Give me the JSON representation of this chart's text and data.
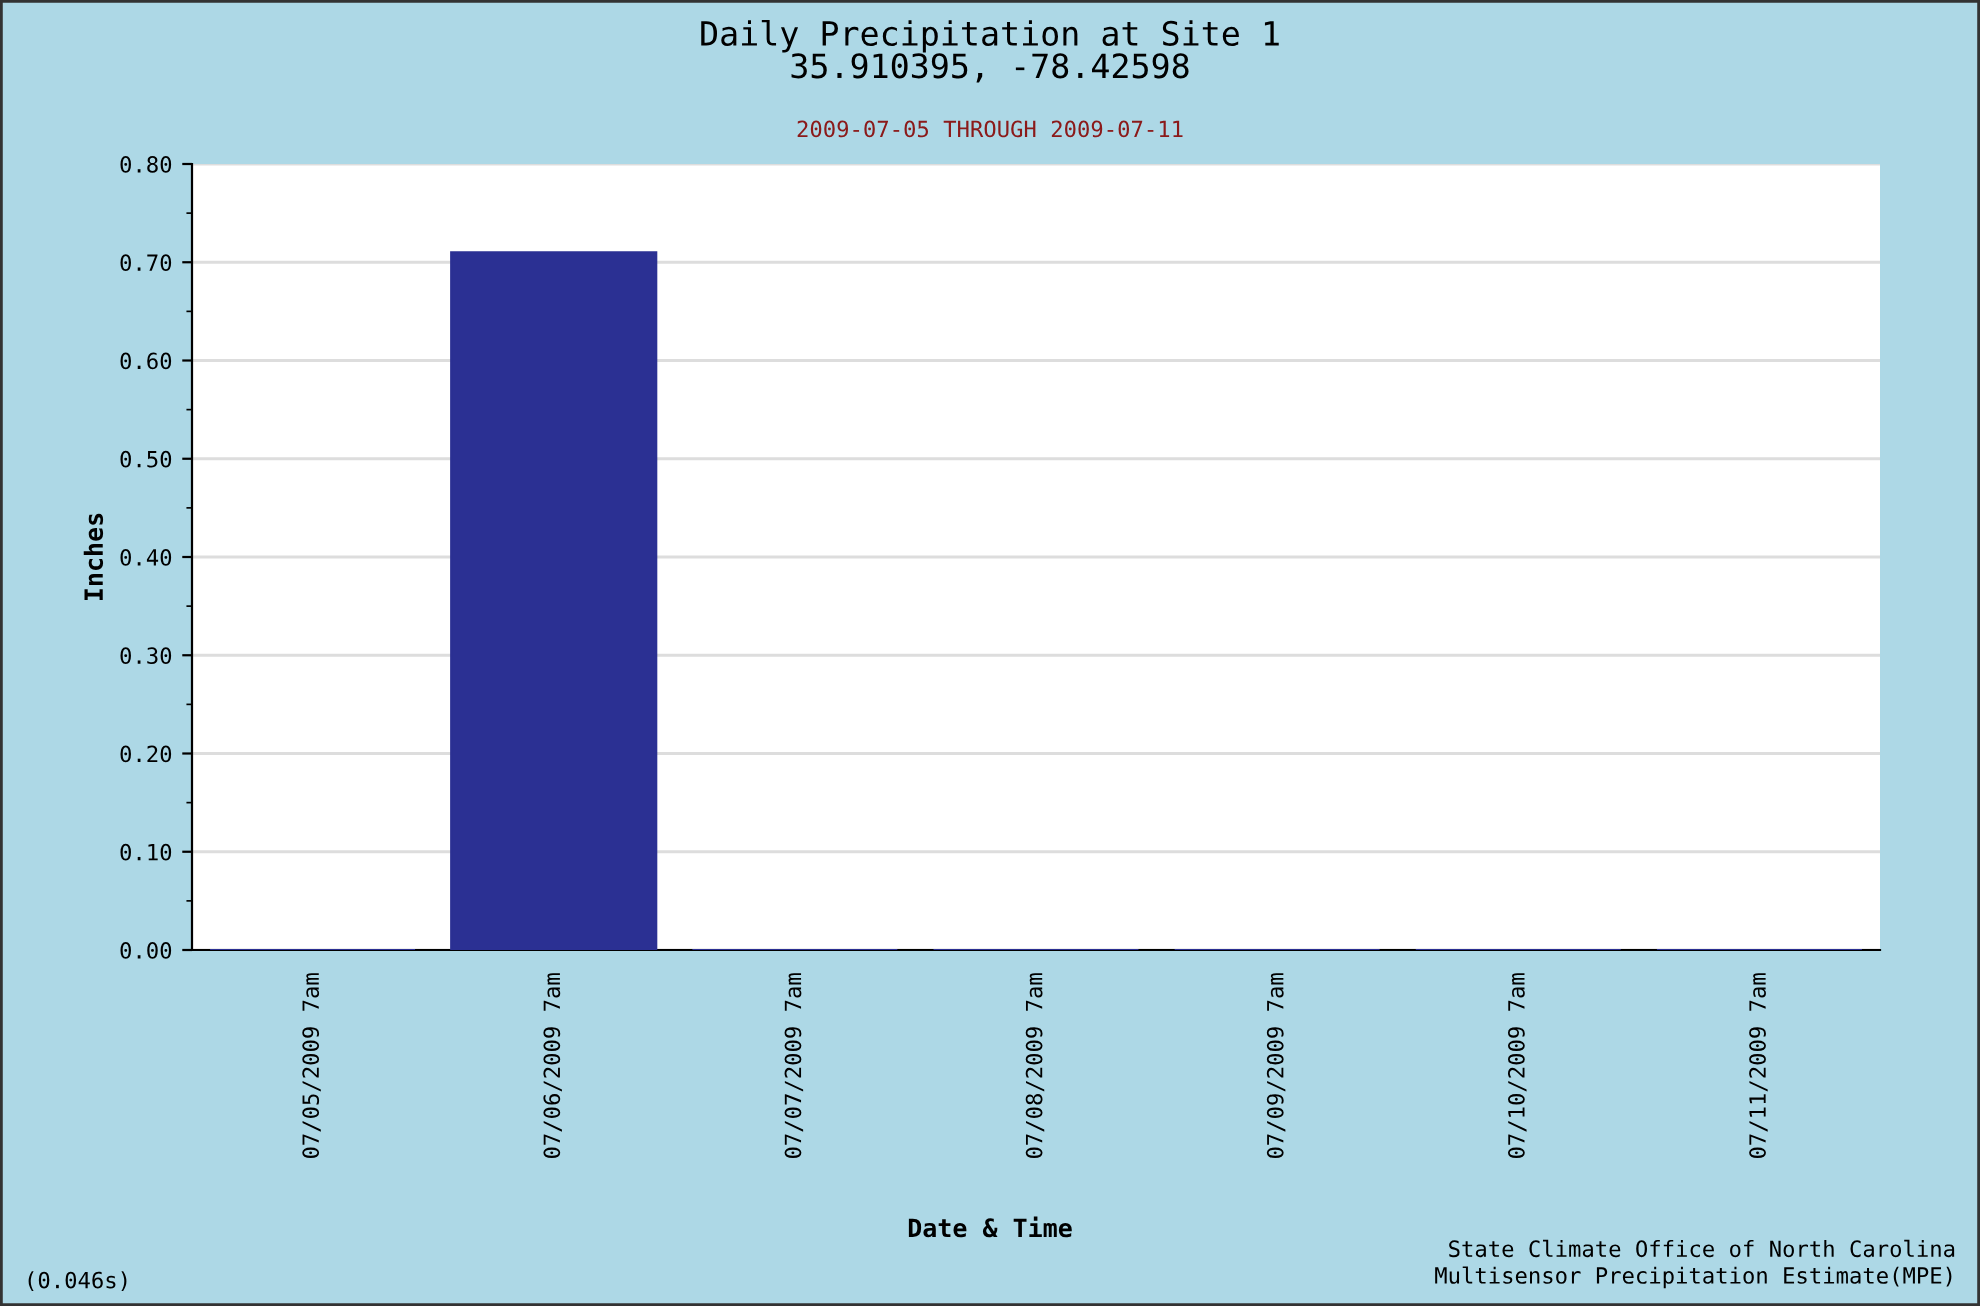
{
  "chart_data": {
    "type": "bar",
    "title": "Daily Precipitation at Site 1\n35.910395, -78.42598",
    "subtitle": "2009-07-05 THROUGH 2009-07-11",
    "xlabel": "Date & Time",
    "ylabel": "Inches",
    "categories": [
      "07/05/2009 7am",
      "07/06/2009 7am",
      "07/07/2009 7am",
      "07/08/2009 7am",
      "07/09/2009 7am",
      "07/10/2009 7am",
      "07/11/2009 7am"
    ],
    "values": [
      0,
      0.71,
      0,
      0,
      0,
      0,
      0
    ],
    "color": "#2b3093",
    "ylim": [
      0,
      0.8
    ],
    "yticks": [
      {
        "value": 0,
        "label": "0.00"
      },
      {
        "value": 0.1,
        "label": "0.10"
      },
      {
        "value": 0.2,
        "label": "0.20"
      },
      {
        "value": 0.3,
        "label": "0.30"
      },
      {
        "value": 0.4,
        "label": "0.40"
      },
      {
        "value": 0.5,
        "label": "0.50"
      },
      {
        "value": 0.6,
        "label": "0.60"
      },
      {
        "value": 0.7,
        "label": "0.70"
      },
      {
        "value": 0.8,
        "label": "0.80"
      }
    ],
    "grid": "y",
    "annotations": [
      "(0.046s)",
      "State Climate Office of North Carolina\nMultisensor Precipitation Estimate(MPE)"
    ]
  }
}
